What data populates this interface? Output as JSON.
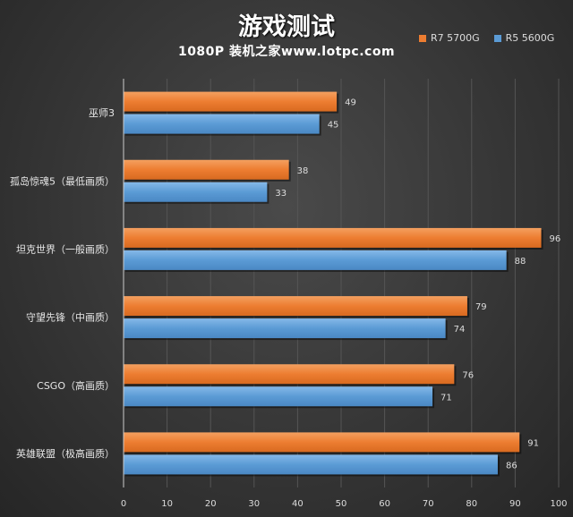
{
  "chart_data": {
    "type": "bar",
    "orientation": "horizontal",
    "title": "游戏测试",
    "subtitle": "1080P  装机之家www.lotpc.com",
    "categories": [
      "巫师3",
      "孤岛惊魂5（最低画质）",
      "坦克世界（一般画质）",
      "守望先锋（中画质）",
      "CSGO（高画质）",
      "英雄联盟（极高画质）"
    ],
    "series": [
      {
        "name": "R7 5700G",
        "color": "#ed7d31",
        "values": [
          49,
          38,
          96,
          79,
          76,
          91
        ]
      },
      {
        "name": "R5 5600G",
        "color": "#5b9bd5",
        "values": [
          45,
          33,
          88,
          74,
          71,
          86
        ]
      }
    ],
    "xlim": [
      0,
      100
    ],
    "xticks": [
      0,
      10,
      20,
      30,
      40,
      50,
      60,
      70,
      80,
      90,
      100
    ],
    "grid": true,
    "legend": "top-right",
    "data_labels": true
  }
}
